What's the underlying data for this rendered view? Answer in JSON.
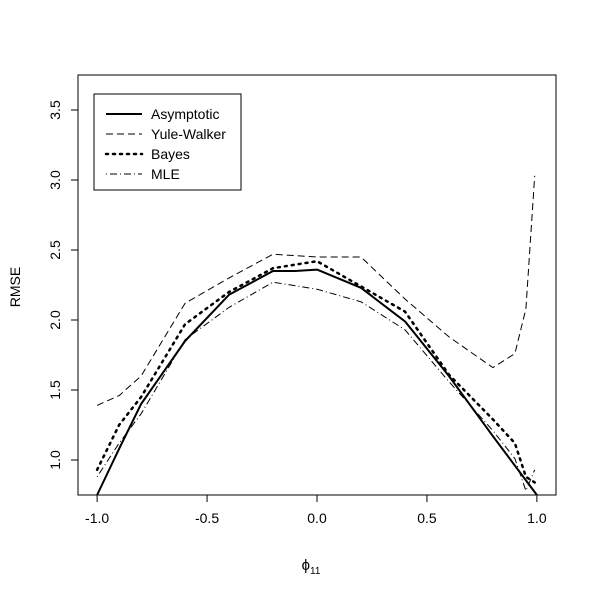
{
  "chart_data": {
    "type": "line",
    "title": "",
    "xlabel_symbol": "ϕ",
    "xlabel_subscript": "11",
    "ylabel": "RMSE",
    "xlim": [
      -1.0,
      1.0
    ],
    "ylim": [
      0.75,
      3.75
    ],
    "x_ticks": [
      -1.0,
      -0.5,
      0.0,
      0.5,
      1.0
    ],
    "x_tick_labels": [
      "-1.0",
      "-0.5",
      "0.0",
      "0.5",
      "1.0"
    ],
    "y_ticks": [
      1.0,
      1.5,
      2.0,
      2.5,
      3.0,
      3.5
    ],
    "y_tick_labels": [
      "1.0",
      "1.5",
      "2.0",
      "2.5",
      "3.0",
      "3.5"
    ],
    "grid": false,
    "legend_position": "top-left",
    "series": [
      {
        "name": "Asymptotic",
        "style": "solid",
        "x": [
          -1.0,
          -0.9,
          -0.8,
          -0.6,
          -0.4,
          -0.2,
          -0.1,
          0.0,
          0.2,
          0.4,
          0.6,
          0.8,
          0.9,
          1.0
        ],
        "y": [
          0.75,
          1.08,
          1.4,
          1.85,
          2.18,
          2.35,
          2.35,
          2.36,
          2.23,
          1.99,
          1.6,
          1.17,
          0.96,
          0.75
        ]
      },
      {
        "name": "Yule-Walker",
        "style": "dashed",
        "x": [
          -1.0,
          -0.9,
          -0.8,
          -0.6,
          -0.4,
          -0.2,
          0.0,
          0.2,
          0.4,
          0.6,
          0.8,
          0.9,
          0.95,
          0.99
        ],
        "y": [
          1.39,
          1.46,
          1.6,
          2.12,
          2.3,
          2.47,
          2.45,
          2.45,
          2.15,
          1.88,
          1.66,
          1.76,
          2.08,
          3.03
        ]
      },
      {
        "name": "Bayes",
        "style": "dotted",
        "x": [
          -1.0,
          -0.9,
          -0.8,
          -0.6,
          -0.4,
          -0.2,
          0.0,
          0.2,
          0.4,
          0.6,
          0.8,
          0.9,
          0.95,
          0.99
        ],
        "y": [
          0.93,
          1.25,
          1.45,
          1.97,
          2.2,
          2.37,
          2.42,
          2.24,
          2.06,
          1.61,
          1.29,
          1.12,
          0.88,
          0.84
        ]
      },
      {
        "name": "MLE",
        "style": "dashdot",
        "x": [
          -1.0,
          -0.9,
          -0.8,
          -0.6,
          -0.4,
          -0.2,
          0.0,
          0.2,
          0.4,
          0.6,
          0.8,
          0.9,
          0.95,
          0.99
        ],
        "y": [
          0.88,
          1.12,
          1.33,
          1.86,
          2.09,
          2.27,
          2.22,
          2.13,
          1.93,
          1.56,
          1.21,
          1.01,
          0.78,
          0.93
        ]
      }
    ]
  }
}
